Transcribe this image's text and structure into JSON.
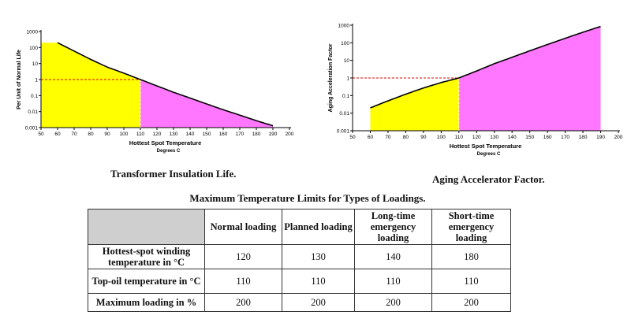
{
  "captions": {
    "left": "Transformer Insulation Life.",
    "right": "Aging Accelerator Factor.",
    "table_title": "Maximum Temperature Limits for Types of Loadings."
  },
  "colors": {
    "yellow_fill": "#ffff00",
    "magenta_fill": "#ff77ff",
    "dashed_line": "#e00000",
    "curve": "#000000",
    "header_corner": "#cfcfcf"
  },
  "chart_data": [
    {
      "type": "area",
      "xlabel": "Hottest Spot Temperature",
      "xlabel_sub": "Degrees C",
      "ylabel": "Per Unit of Normal Life",
      "yscale": "log",
      "xlim": [
        50,
        200
      ],
      "ylim": [
        0.001,
        1000
      ],
      "x_ticks": [
        50,
        60,
        70,
        80,
        90,
        100,
        110,
        120,
        130,
        140,
        150,
        160,
        170,
        180,
        190,
        200
      ],
      "y_ticks": [
        "1000",
        "100",
        "10",
        "1",
        "0.1",
        "0.01",
        "0.001"
      ],
      "curve": {
        "x": [
          60,
          70,
          80,
          90,
          100,
          110,
          120,
          130,
          140,
          150,
          160,
          170,
          180,
          190
        ],
        "y": [
          200,
          60,
          18,
          6,
          2.5,
          1,
          0.4,
          0.16,
          0.07,
          0.03,
          0.013,
          0.006,
          0.0027,
          0.0013
        ]
      },
      "reference": {
        "x": 110,
        "y": 1
      },
      "shaded_regions": [
        {
          "from": 50,
          "to": 110,
          "color": "yellow"
        },
        {
          "from": 110,
          "to": 190,
          "color": "magenta"
        }
      ]
    },
    {
      "type": "area",
      "xlabel": "Hottest Spot Temperature",
      "xlabel_sub": "Degrees C",
      "ylabel": "Aging Acceleration Factor",
      "yscale": "log",
      "xlim": [
        50,
        200
      ],
      "ylim": [
        0.001,
        1000
      ],
      "x_ticks": [
        50,
        60,
        70,
        80,
        90,
        100,
        110,
        120,
        130,
        140,
        150,
        160,
        170,
        180,
        190,
        200
      ],
      "y_ticks": [
        "1000",
        "100",
        "10",
        "1",
        "0.1",
        "0.01",
        "0.001"
      ],
      "curve": {
        "x": [
          60,
          70,
          80,
          90,
          100,
          110,
          120,
          130,
          140,
          150,
          160,
          170,
          180,
          190
        ],
        "y": [
          0.02,
          0.05,
          0.12,
          0.27,
          0.55,
          1,
          2.5,
          6.5,
          15,
          35,
          80,
          180,
          400,
          850
        ]
      },
      "reference": {
        "x": 110,
        "y": 1
      },
      "shaded_regions": [
        {
          "from": 60,
          "to": 110,
          "color": "yellow"
        },
        {
          "from": 110,
          "to": 190,
          "color": "magenta"
        }
      ]
    }
  ],
  "table": {
    "headers": [
      "",
      "Normal loading",
      "Planned loading",
      "Long-time emergency loading",
      "Short-time emergency loading"
    ],
    "rows": [
      {
        "label": "Hottest-spot winding temperature in °C",
        "values": [
          "120",
          "130",
          "140",
          "180"
        ]
      },
      {
        "label": "Top-oil temperature in °C",
        "values": [
          "110",
          "110",
          "110",
          "110"
        ]
      },
      {
        "label": "Maximum loading in %",
        "values": [
          "200",
          "200",
          "200",
          "200"
        ]
      }
    ]
  }
}
